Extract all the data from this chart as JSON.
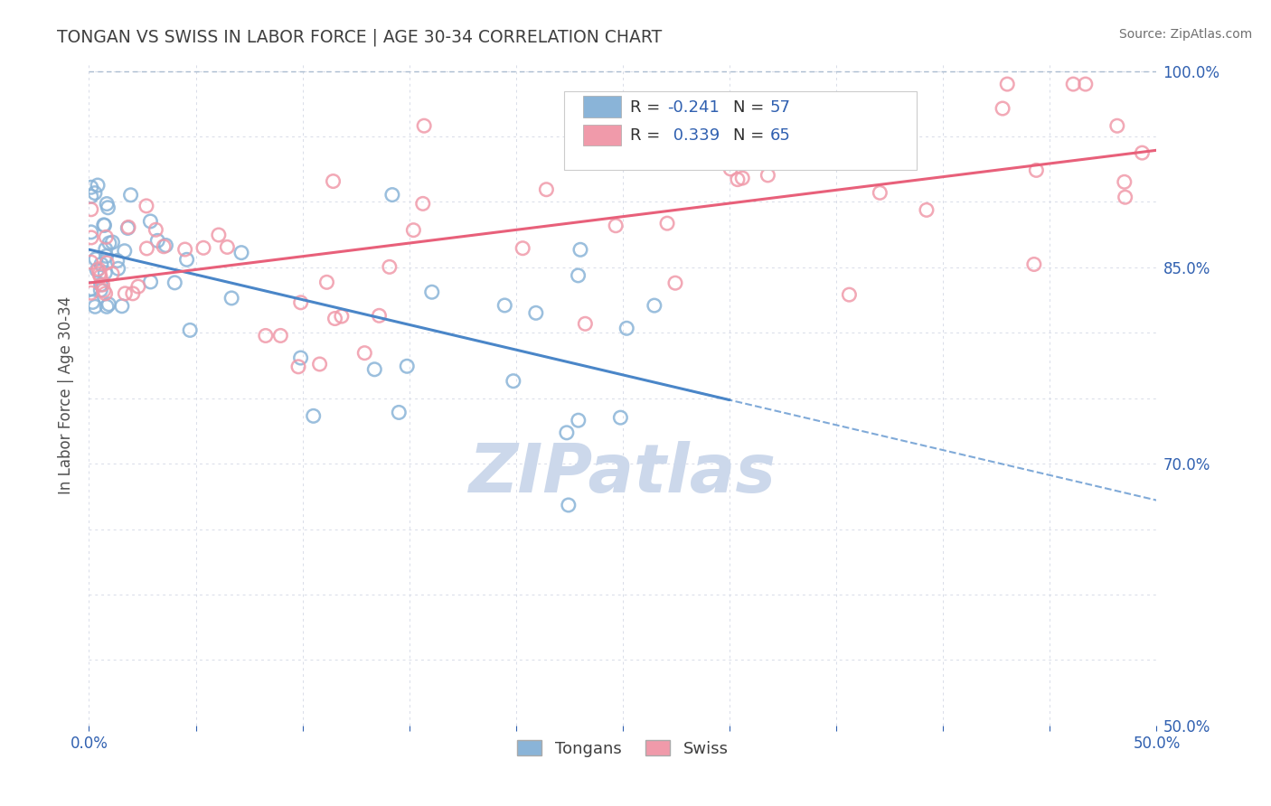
{
  "title": "TONGAN VS SWISS IN LABOR FORCE | AGE 30-34 CORRELATION CHART",
  "source": "Source: ZipAtlas.com",
  "ylabel": "In Labor Force | Age 30-34",
  "xlim": [
    0.0,
    0.5
  ],
  "ylim": [
    0.5,
    1.005
  ],
  "tongan_R": -0.241,
  "tongan_N": 57,
  "swiss_R": 0.339,
  "swiss_N": 65,
  "tongan_color": "#8ab4d8",
  "swiss_color": "#f09aaa",
  "tongan_line_color": "#4a86c8",
  "swiss_line_color": "#e8607a",
  "dashed_line_color": "#aabcd0",
  "watermark_color": "#c8d4e8",
  "background_color": "#ffffff",
  "label_color": "#3060b0",
  "title_color": "#404040",
  "grid_color": "#d8dce8",
  "right_ytick_labels": [
    "50.0%",
    "",
    "",
    "",
    "70.0%",
    "",
    "",
    "85.0%",
    "",
    "",
    "100.0%"
  ]
}
